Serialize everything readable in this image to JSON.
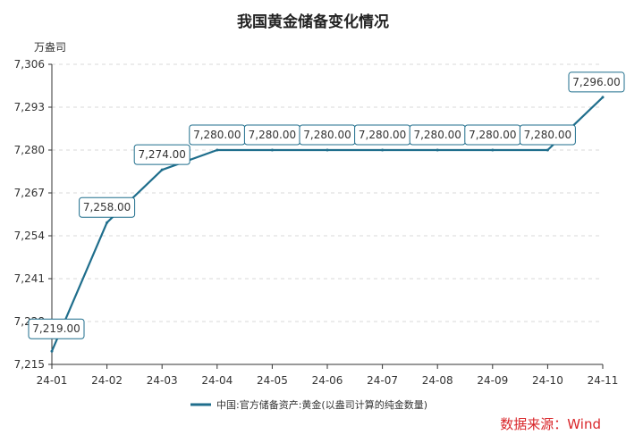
{
  "chart_data": {
    "type": "line",
    "title": "我国黄金储备变化情况",
    "unit_label": "万盎司",
    "categories": [
      "24-01",
      "24-02",
      "24-03",
      "24-04",
      "24-05",
      "24-06",
      "24-07",
      "24-08",
      "24-09",
      "24-10",
      "24-11"
    ],
    "series": [
      {
        "name": "中国:官方储备资产:黄金(以盎司计算的纯金数量)",
        "values": [
          7219,
          7258,
          7274,
          7280,
          7280,
          7280,
          7280,
          7280,
          7280,
          7280,
          7296
        ],
        "data_labels": [
          "7,219.00",
          "7,258.00",
          "7,274.00",
          "7,280.00",
          "7,280.00",
          "7,280.00",
          "7,280.00",
          "7,280.00",
          "7,280.00",
          "7,280.00",
          "7,296.00"
        ],
        "color": "#1f6e8c"
      }
    ],
    "y_ticks": [
      7215,
      7228,
      7241,
      7254,
      7267,
      7280,
      7293,
      7306
    ],
    "y_tick_labels": [
      "7,215",
      "7,228",
      "7,241",
      "7,254",
      "7,267",
      "7,280",
      "7,293",
      "7,306"
    ],
    "ylim": [
      7215,
      7306
    ],
    "grid": true,
    "legend_position": "bottom"
  },
  "source": "数据来源：Wind"
}
